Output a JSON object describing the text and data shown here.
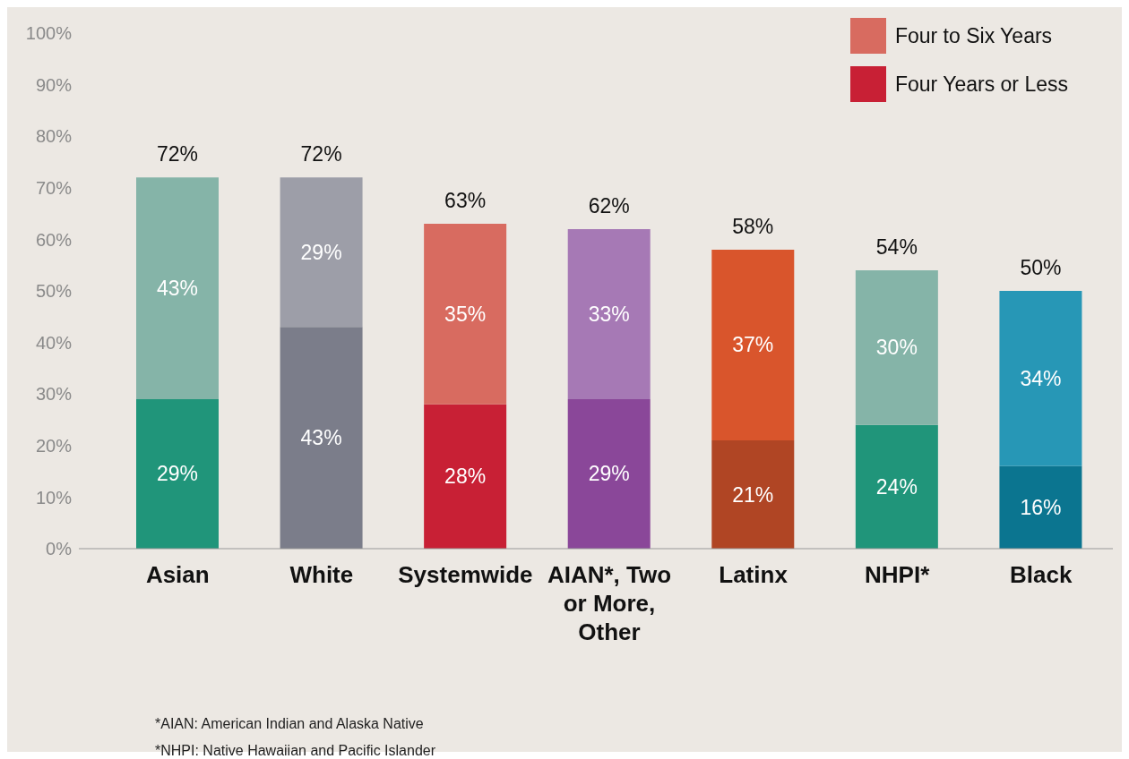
{
  "chart_data": {
    "type": "bar",
    "stacked": true,
    "categories": [
      "Asian",
      "White",
      "Systemwide",
      "AIAN*, Two or More, Other",
      "Latinx",
      "NHPI*",
      "Black"
    ],
    "series": [
      {
        "name": "Four Years or Less",
        "color": "#c82035",
        "colors": [
          "#20957a",
          "#7b7d8a",
          "#c82035",
          "#8a4799",
          "#b04524",
          "#20957a",
          "#0b7590"
        ],
        "values": [
          29,
          43,
          28,
          29,
          21,
          24,
          16
        ],
        "value_labels": [
          "29%",
          "43%",
          "28%",
          "29%",
          "21%",
          "24%",
          "16%"
        ]
      },
      {
        "name": "Four to Six Years",
        "color": "#d86b60",
        "colors": [
          "#85b4a8",
          "#9d9ea8",
          "#d86b60",
          "#a679b5",
          "#d9552c",
          "#85b4a8",
          "#2797b6"
        ],
        "values": [
          43,
          29,
          35,
          33,
          37,
          30,
          34
        ],
        "value_labels": [
          "43%",
          "29%",
          "35%",
          "33%",
          "37%",
          "30%",
          "34%"
        ]
      }
    ],
    "totals": [
      "72%",
      "72%",
      "63%",
      "62%",
      "58%",
      "54%",
      "50%"
    ],
    "ylim": [
      0,
      100
    ],
    "yticks": [
      {
        "value": 0,
        "label": "0%"
      },
      {
        "value": 10,
        "label": "10%"
      },
      {
        "value": 20,
        "label": "20%"
      },
      {
        "value": 30,
        "label": "30%"
      },
      {
        "value": 40,
        "label": "40%"
      },
      {
        "value": 50,
        "label": "50%"
      },
      {
        "value": 60,
        "label": "60%"
      },
      {
        "value": 70,
        "label": "70%"
      },
      {
        "value": 80,
        "label": "80%"
      },
      {
        "value": 90,
        "label": "90%"
      },
      {
        "value": 100,
        "label": "100%"
      }
    ],
    "grid": false,
    "legend": "top right",
    "annotations": [
      "*AIAN: American Indian and Alaska Native",
      "*NHPI: Native Hawaiian and Pacific Islander"
    ]
  }
}
